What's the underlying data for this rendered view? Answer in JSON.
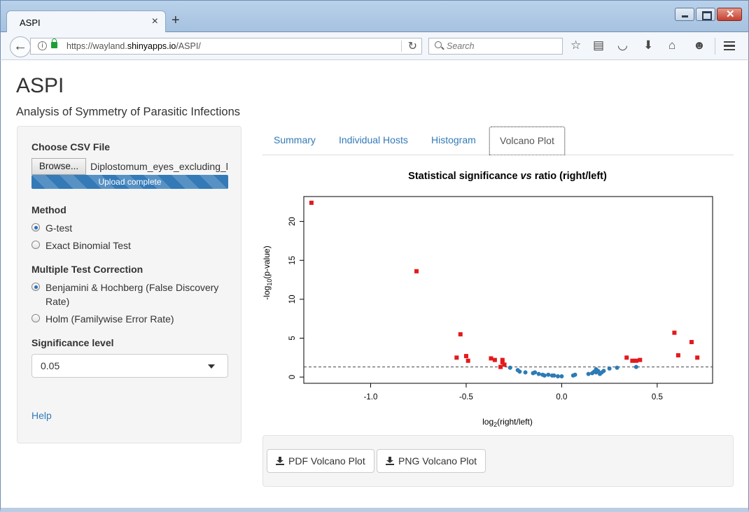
{
  "browser": {
    "tab_title": "ASPI",
    "tab_close": "×",
    "new_tab": "+",
    "url_prefix": "https://wayland.",
    "url_host": "shinyapps.io",
    "url_path": "/ASPI/",
    "search_placeholder": "Search",
    "icons": [
      "arrow-left-icon",
      "info-icon",
      "lock-icon",
      "reload-icon",
      "search-icon",
      "star-icon",
      "reading-list-icon",
      "pocket-icon",
      "download-icon",
      "home-icon",
      "smiley-icon",
      "hamburger-menu-icon"
    ]
  },
  "page": {
    "title": "ASPI",
    "subtitle": "Analysis of Symmetry of Parasitic Infections"
  },
  "sidebar": {
    "file_label": "Choose CSV File",
    "browse_label": "Browse...",
    "file_name": "Diplostomum_eyes_excluding_l",
    "upload_status": "Upload complete",
    "method_label": "Method",
    "methods": [
      {
        "label": "G-test",
        "selected": true
      },
      {
        "label": "Exact Binomial Test",
        "selected": false
      }
    ],
    "correction_label": "Multiple Test Correction",
    "corrections": [
      {
        "label": "Benjamini & Hochberg (False Discovery Rate)",
        "selected": true
      },
      {
        "label": "Holm (Familywise Error Rate)",
        "selected": false
      }
    ],
    "significance_label": "Significance level",
    "significance_value": "0.05",
    "help_label": "Help"
  },
  "tabs": [
    {
      "label": "Summary",
      "active": false
    },
    {
      "label": "Individual Hosts",
      "active": false
    },
    {
      "label": "Histogram",
      "active": false
    },
    {
      "label": "Volcano Plot",
      "active": true
    }
  ],
  "chart_data": {
    "type": "scatter",
    "title": "Statistical significance vs ratio (right/left)",
    "xlabel": "log2(right/left)",
    "ylabel": "-log10(p-value)",
    "xlim": [
      -1.35,
      0.79
    ],
    "ylim": [
      -0.8,
      23.2
    ],
    "xticks": [
      "-1.0",
      "-0.5",
      "0.0",
      "0.5"
    ],
    "xtick_values": [
      -1.0,
      -0.5,
      0.0,
      0.5
    ],
    "yticks": [
      "0",
      "5",
      "10",
      "15",
      "20"
    ],
    "ytick_values": [
      0,
      5,
      10,
      15,
      20
    ],
    "threshold_line": 1.3,
    "grid": false,
    "series": [
      {
        "color": "#e31a1c",
        "marker": "square",
        "points": [
          [
            -1.31,
            22.4
          ],
          [
            -0.76,
            13.6
          ],
          [
            -0.53,
            5.5
          ],
          [
            -0.55,
            2.5
          ],
          [
            -0.5,
            2.7
          ],
          [
            -0.49,
            2.1
          ],
          [
            -0.37,
            2.4
          ],
          [
            -0.35,
            2.2
          ],
          [
            -0.31,
            2.2
          ],
          [
            -0.31,
            1.9
          ],
          [
            -0.32,
            1.3
          ],
          [
            -0.3,
            1.6
          ],
          [
            0.34,
            2.5
          ],
          [
            0.37,
            2.1
          ],
          [
            0.39,
            2.1
          ],
          [
            0.41,
            2.2
          ],
          [
            0.59,
            5.7
          ],
          [
            0.61,
            2.8
          ],
          [
            0.68,
            4.5
          ],
          [
            0.71,
            2.5
          ]
        ]
      },
      {
        "color": "#2c7bb6",
        "marker": "circle",
        "points": [
          [
            -0.27,
            1.2
          ],
          [
            -0.23,
            0.9
          ],
          [
            -0.22,
            0.7
          ],
          [
            -0.19,
            0.6
          ],
          [
            -0.15,
            0.5
          ],
          [
            -0.14,
            0.6
          ],
          [
            -0.12,
            0.4
          ],
          [
            -0.1,
            0.3
          ],
          [
            -0.09,
            0.2
          ],
          [
            -0.07,
            0.3
          ],
          [
            -0.05,
            0.2
          ],
          [
            -0.04,
            0.2
          ],
          [
            -0.02,
            0.1
          ],
          [
            0.0,
            0.1
          ],
          [
            0.06,
            0.2
          ],
          [
            0.07,
            0.3
          ],
          [
            0.14,
            0.4
          ],
          [
            0.16,
            0.5
          ],
          [
            0.17,
            0.7
          ],
          [
            0.18,
            1.0
          ],
          [
            0.18,
            0.6
          ],
          [
            0.19,
            0.8
          ],
          [
            0.2,
            0.4
          ],
          [
            0.21,
            0.6
          ],
          [
            0.22,
            0.8
          ],
          [
            0.25,
            1.1
          ],
          [
            0.29,
            1.2
          ],
          [
            0.39,
            1.3
          ]
        ]
      }
    ]
  },
  "downloads": {
    "pdf_label": "PDF Volcano Plot",
    "png_label": "PNG Volcano Plot"
  }
}
